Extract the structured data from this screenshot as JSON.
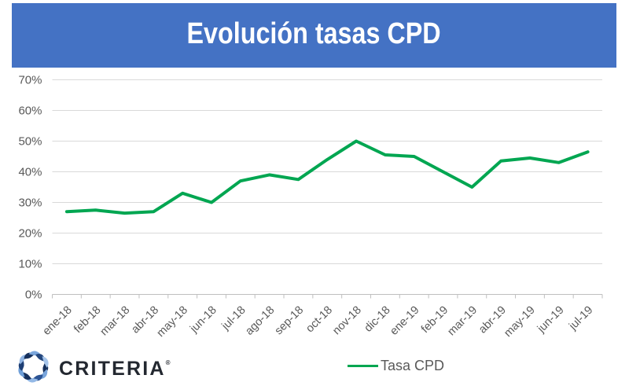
{
  "header": {
    "title": "Evolución tasas CPD",
    "background_color": "#4472C4",
    "text_color": "#FFFFFF"
  },
  "chart_data": {
    "type": "line",
    "title": "Evolución tasas CPD",
    "categories": [
      "ene-18",
      "feb-18",
      "mar-18",
      "abr-18",
      "may-18",
      "jun-18",
      "jul-18",
      "ago-18",
      "sep-18",
      "oct-18",
      "nov-18",
      "dic-18",
      "ene-19",
      "feb-19",
      "mar-19",
      "abr-19",
      "may-19",
      "jun-19",
      "jul-19"
    ],
    "series": [
      {
        "name": "Tasa CPD",
        "color": "#00A651",
        "values": [
          27,
          27.5,
          26.5,
          27,
          33,
          30,
          37,
          39,
          37.5,
          44,
          50,
          45.5,
          45,
          40,
          35,
          43.5,
          44.5,
          43,
          46.5
        ]
      }
    ],
    "xlabel": "",
    "ylabel": "",
    "ylim": [
      0,
      70
    ],
    "y_tick_step": 10,
    "y_tick_labels": [
      "0%",
      "10%",
      "20%",
      "30%",
      "40%",
      "50%",
      "60%",
      "70%"
    ],
    "grid": true,
    "gridline_color": "#D9D9D9",
    "axis_line_color": "#BFBFBF",
    "tick_label_color": "#595959",
    "legend_position": "bottom"
  },
  "legend": {
    "label": "Tasa CPD",
    "swatch_color": "#00A651"
  },
  "footer": {
    "brand": "CRITERIA",
    "brand_suffix": "®"
  }
}
